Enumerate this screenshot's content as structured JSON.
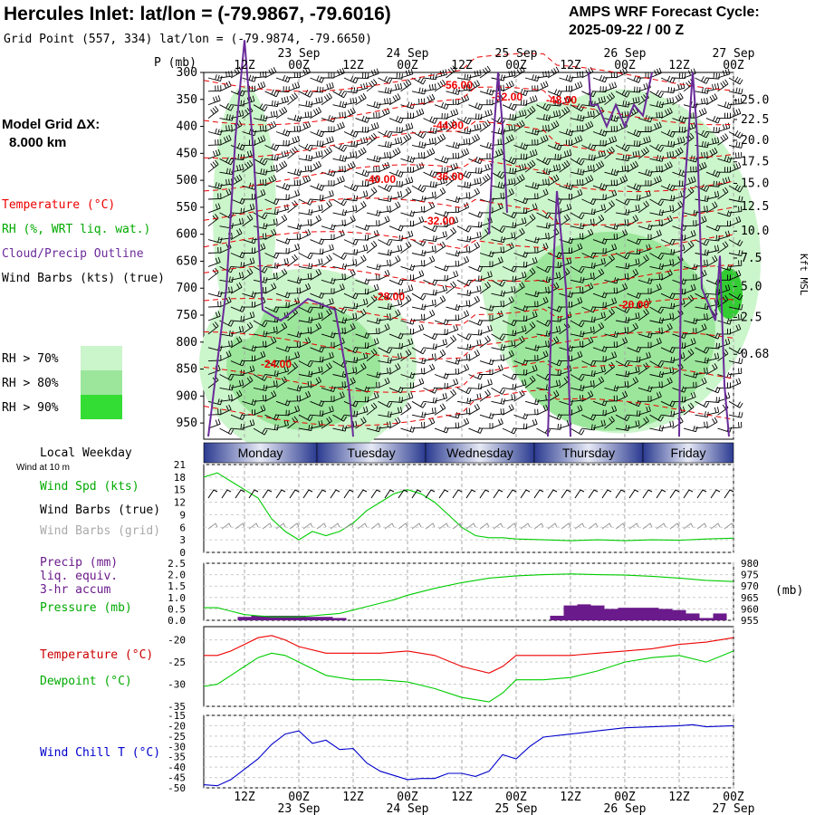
{
  "header": {
    "title": "Hercules Inlet:  lat/lon = (-79.9867, -79.6016)",
    "grid_point": "Grid Point (557, 334) lat/lon = (-79.9874, -79.6650)",
    "forecast_label": "AMPS WRF Forecast Cycle:",
    "forecast_cycle": "2025-09-22 / 00  Z",
    "model_grid_label": "Model Grid ΔX:",
    "model_grid_value": "8.000 km"
  },
  "colors": {
    "temperature": "#ee0000",
    "dewpoint": "#00cc00",
    "rh": "#00aa00",
    "cloud_outline": "#6a2b9a",
    "precip": "#6a1a8a",
    "wind_chill": "#0000cc",
    "barbs_grid": "#999999",
    "day_band": "#3a4aa0"
  },
  "time_axis": {
    "top_labels": [
      "12Z",
      "00Z",
      "12Z",
      "00Z",
      "12Z",
      "00Z",
      "12Z",
      "00Z",
      "12Z",
      "00Z"
    ],
    "top_dates": [
      "23 Sep",
      "24 Sep",
      "25 Sep",
      "26 Sep",
      "27 Sep"
    ],
    "bottom_labels": [
      "12Z",
      "00Z",
      "12Z",
      "00Z",
      "12Z",
      "00Z",
      "12Z",
      "00Z",
      "12Z",
      "00Z"
    ],
    "bottom_dates": [
      "23 Sep",
      "24 Sep",
      "25 Sep",
      "26 Sep",
      "27 Sep"
    ],
    "range_hours": [
      3,
      120
    ],
    "tick_hours": [
      12,
      24,
      36,
      48,
      60,
      72,
      84,
      96,
      108,
      120
    ]
  },
  "local_weekday": {
    "label": "Local Weekday",
    "days": [
      "Monday",
      "Tuesday",
      "Wednesday",
      "Thursday",
      "Friday"
    ]
  },
  "legend": {
    "temperature": "Temperature (°C)",
    "rh": "RH (%, WRT liq. wat.)",
    "cloud": "Cloud/Precip Outline",
    "wind": "Wind Barbs (kts) (true)",
    "rh70": "RH > 70%",
    "rh80": "RH > 80%",
    "rh90": "RH > 90%"
  },
  "chart_data": [
    {
      "type": "heatmap",
      "panel": "time-height cross section",
      "ylabel": "P (mb)",
      "y2label": "Kft MSL",
      "pressure_ticks": [
        "300",
        "350",
        "400",
        "450",
        "500",
        "550",
        "600",
        "650",
        "700",
        "750",
        "800",
        "850",
        "900",
        "950"
      ],
      "height_ticks": [
        "25.0",
        "22.5",
        "20.0",
        "17.5",
        "15.0",
        "12.5",
        "10.0",
        "7.5",
        "5.0",
        "2.5",
        "0.68"
      ],
      "height_tick_pressures": [
        350,
        375,
        402,
        430,
        458,
        488,
        520,
        555,
        592,
        632,
        680
      ],
      "isotherm_labels": [
        {
          "text": "-56.00",
          "t": 59,
          "p": 330
        },
        {
          "text": "-52.00",
          "t": 70,
          "p": 352
        },
        {
          "text": "-48.00",
          "t": 82,
          "p": 358
        },
        {
          "text": "-44.00",
          "t": 57,
          "p": 405
        },
        {
          "text": "-40.00",
          "t": 42,
          "p": 505
        },
        {
          "text": "-36.00",
          "t": 57,
          "p": 500
        },
        {
          "text": "-32.00",
          "t": 55,
          "p": 582
        },
        {
          "text": "-28.00",
          "t": 44,
          "p": 722
        },
        {
          "text": "-24.00",
          "t": 19,
          "p": 847
        },
        {
          "text": "-20.00",
          "t": 98,
          "p": 737
        }
      ]
    },
    {
      "type": "line",
      "panel": "wind",
      "title": "Wind at 10 m",
      "labels": [
        "Wind Spd (kts)",
        "Wind Barbs (true)",
        "Wind Barbs (grid)"
      ],
      "yticks": [
        "21",
        "18",
        "15",
        "12",
        "9",
        "6",
        "3",
        "0"
      ],
      "ylim": [
        0,
        21
      ],
      "series": [
        {
          "name": "Wind Spd (kts)",
          "x": [
            3,
            6,
            9,
            12,
            15,
            18,
            21,
            24,
            27,
            30,
            33,
            36,
            39,
            42,
            45,
            48,
            51,
            54,
            57,
            60,
            63,
            66,
            69,
            72,
            78,
            84,
            90,
            96,
            102,
            108,
            114,
            120
          ],
          "y": [
            18,
            19,
            17,
            15,
            13,
            8,
            5,
            3,
            5,
            4,
            5,
            7,
            10,
            12,
            14,
            15,
            14,
            12,
            9,
            6,
            4,
            3.5,
            3.5,
            3.2,
            3,
            2.8,
            3,
            2.8,
            3,
            2.9,
            3.2,
            3.4
          ]
        }
      ]
    },
    {
      "type": "line",
      "panel": "precip",
      "labels": [
        "Precip (mm)",
        "liq. equiv.",
        "3-hr accum",
        "Pressure (mb)"
      ],
      "yticks": [
        "2.5",
        "2.0",
        "1.5",
        "1.0",
        "0.5",
        "0.0"
      ],
      "y2ticks": [
        "980",
        "975",
        "970",
        "965",
        "960",
        "955"
      ],
      "y2unit": "(mb)",
      "ylim": [
        0,
        2.5
      ],
      "y2lim": [
        955,
        980
      ],
      "precip": {
        "x": [
          12,
          15,
          18,
          21,
          24,
          27,
          30,
          33,
          81,
          84,
          87,
          90,
          93,
          96,
          99,
          102,
          105,
          108,
          111,
          114,
          117
        ],
        "y": [
          0.15,
          0.2,
          0.2,
          0.2,
          0.2,
          0.15,
          0.15,
          0.1,
          0.2,
          0.65,
          0.7,
          0.65,
          0.5,
          0.55,
          0.55,
          0.55,
          0.5,
          0.45,
          0.3,
          0.1,
          0.3
        ]
      },
      "series": [
        {
          "name": "Pressure (mb)",
          "x": [
            3,
            6,
            9,
            12,
            15,
            18,
            21,
            24,
            27,
            30,
            33,
            36,
            39,
            42,
            45,
            48,
            54,
            60,
            66,
            72,
            78,
            84,
            90,
            96,
            102,
            108,
            114,
            120
          ],
          "y": [
            960.5,
            960.5,
            959,
            957.5,
            957,
            956.5,
            956.5,
            956.5,
            957,
            957.5,
            958,
            959.5,
            961,
            962.5,
            964,
            966,
            969,
            971.5,
            973.5,
            974.5,
            975,
            975.3,
            975,
            974.8,
            974.3,
            973.5,
            972.5,
            972
          ]
        }
      ]
    },
    {
      "type": "line",
      "panel": "temperature",
      "labels": [
        "Temperature (°C)",
        "Dewpoint (°C)"
      ],
      "yticks": [
        "-20",
        "-25",
        "-30",
        "-35"
      ],
      "ylim": [
        -35,
        -17
      ],
      "series": [
        {
          "name": "Temperature (°C)",
          "x": [
            3,
            6,
            9,
            12,
            15,
            18,
            21,
            24,
            30,
            36,
            42,
            48,
            54,
            60,
            66,
            69,
            72,
            78,
            84,
            90,
            96,
            102,
            108,
            114,
            120
          ],
          "y": [
            -23.5,
            -23.5,
            -22.5,
            -21,
            -19.5,
            -19,
            -20,
            -21.5,
            -23,
            -23,
            -23,
            -22.5,
            -23.5,
            -26,
            -27.5,
            -26,
            -23.5,
            -23.5,
            -23.5,
            -23,
            -22.5,
            -22,
            -21,
            -20.5,
            -19.5
          ]
        },
        {
          "name": "Dewpoint (°C)",
          "x": [
            3,
            6,
            9,
            12,
            15,
            18,
            21,
            24,
            30,
            36,
            42,
            48,
            54,
            60,
            66,
            69,
            72,
            78,
            84,
            90,
            96,
            102,
            108,
            114,
            120
          ],
          "y": [
            -30.5,
            -30,
            -28,
            -26,
            -24,
            -23,
            -23.5,
            -25,
            -28,
            -29,
            -29,
            -29.5,
            -31,
            -33,
            -34,
            -32,
            -29,
            -29,
            -28.5,
            -27,
            -25,
            -24,
            -23.5,
            -25,
            -22.5
          ]
        }
      ]
    },
    {
      "type": "line",
      "panel": "wind chill",
      "labels": [
        "Wind Chill T (°C)"
      ],
      "yticks": [
        "-15",
        "-20",
        "-25",
        "-30",
        "-35",
        "-40",
        "-45",
        "-50"
      ],
      "ylim": [
        -50,
        -15
      ],
      "series": [
        {
          "name": "Wind Chill T (°C)",
          "x": [
            3,
            6,
            9,
            12,
            15,
            18,
            21,
            24,
            27,
            30,
            33,
            36,
            39,
            42,
            45,
            48,
            51,
            54,
            57,
            60,
            63,
            66,
            69,
            72,
            75,
            78,
            84,
            90,
            96,
            102,
            108,
            111,
            114,
            120
          ],
          "y": [
            -48.5,
            -49,
            -46,
            -41,
            -36,
            -29,
            -24,
            -22.5,
            -28.5,
            -27,
            -31.5,
            -31,
            -38,
            -42,
            -44,
            -46,
            -45.5,
            -45.5,
            -43,
            -43,
            -44.5,
            -42,
            -34,
            -36,
            -30,
            -25.5,
            -24,
            -22.5,
            -21,
            -20.5,
            -20,
            -19.5,
            -20.5,
            -20
          ]
        }
      ]
    }
  ]
}
